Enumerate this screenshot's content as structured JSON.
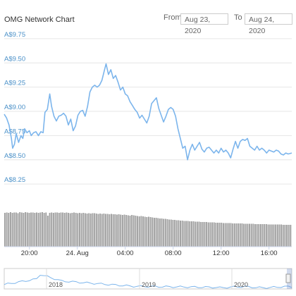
{
  "header": {
    "title": "OMG Network Chart",
    "from_label": "From",
    "from_value": "Aug 23, 2020",
    "to_label": "To",
    "to_value": "Aug 24, 2020"
  },
  "navigator": {
    "labels": [
      "2018",
      "2019",
      "2020"
    ]
  },
  "colors": {
    "line": "#7cb5ec",
    "volume": "#a0a0a0",
    "grid": "#e6e6e6",
    "axis_label": "#4a90c8"
  },
  "chart_data": {
    "type": "line",
    "title": "OMG Network Chart",
    "xlabel": "",
    "ylabel": "",
    "y_ticks": [
      "A$8.25",
      "A$8.50",
      "A$8.75",
      "A$9.00",
      "A$9.25",
      "A$9.50",
      "A$9.75"
    ],
    "y_tick_values": [
      8.25,
      8.5,
      8.75,
      9.0,
      9.25,
      9.5,
      9.75
    ],
    "ylim": [
      8.2,
      9.8
    ],
    "x_ticks": [
      "20:00",
      "24. Aug",
      "04:00",
      "08:00",
      "12:00",
      "16:00"
    ],
    "x_tick_hours": [
      20,
      24,
      28,
      32,
      36,
      40
    ],
    "xlim_hours": [
      17.9,
      41.9
    ],
    "grid": true,
    "legend": "none",
    "series": [
      {
        "values_by_hour": [
          [
            17.9,
            8.97
          ],
          [
            18.1,
            8.93
          ],
          [
            18.3,
            8.86
          ],
          [
            18.5,
            8.72
          ],
          [
            18.6,
            8.62
          ],
          [
            18.75,
            8.66
          ],
          [
            18.9,
            8.77
          ],
          [
            19.1,
            8.68
          ],
          [
            19.3,
            8.75
          ],
          [
            19.45,
            8.72
          ],
          [
            19.6,
            8.82
          ],
          [
            19.8,
            8.78
          ],
          [
            20.0,
            8.8
          ],
          [
            20.15,
            8.75
          ],
          [
            20.35,
            8.78
          ],
          [
            20.55,
            8.79
          ],
          [
            20.75,
            8.75
          ],
          [
            20.95,
            8.79
          ],
          [
            21.15,
            8.78
          ],
          [
            21.3,
            8.99
          ],
          [
            21.5,
            9.02
          ],
          [
            21.7,
            9.18
          ],
          [
            21.85,
            9.05
          ],
          [
            22.05,
            8.95
          ],
          [
            22.25,
            8.9
          ],
          [
            22.45,
            8.95
          ],
          [
            22.65,
            8.96
          ],
          [
            22.85,
            8.98
          ],
          [
            23.05,
            8.95
          ],
          [
            23.25,
            8.86
          ],
          [
            23.45,
            8.92
          ],
          [
            23.65,
            8.8
          ],
          [
            23.85,
            8.85
          ],
          [
            24.05,
            8.96
          ],
          [
            24.25,
            9.0
          ],
          [
            24.45,
            9.01
          ],
          [
            24.65,
            8.95
          ],
          [
            24.85,
            9.05
          ],
          [
            25.05,
            9.2
          ],
          [
            25.25,
            9.25
          ],
          [
            25.45,
            9.27
          ],
          [
            25.65,
            9.25
          ],
          [
            25.85,
            9.27
          ],
          [
            26.05,
            9.32
          ],
          [
            26.25,
            9.42
          ],
          [
            26.4,
            9.49
          ],
          [
            26.6,
            9.38
          ],
          [
            26.8,
            9.43
          ],
          [
            27.0,
            9.34
          ],
          [
            27.2,
            9.37
          ],
          [
            27.4,
            9.3
          ],
          [
            27.6,
            9.22
          ],
          [
            27.8,
            9.25
          ],
          [
            28.0,
            9.18
          ],
          [
            28.2,
            9.16
          ],
          [
            28.4,
            9.1
          ],
          [
            28.6,
            9.06
          ],
          [
            28.8,
            9.02
          ],
          [
            29.0,
            8.99
          ],
          [
            29.2,
            8.93
          ],
          [
            29.4,
            8.96
          ],
          [
            29.6,
            8.92
          ],
          [
            29.8,
            8.88
          ],
          [
            30.0,
            8.95
          ],
          [
            30.2,
            9.08
          ],
          [
            30.4,
            9.11
          ],
          [
            30.6,
            9.14
          ],
          [
            30.8,
            9.03
          ],
          [
            31.0,
            8.96
          ],
          [
            31.2,
            8.89
          ],
          [
            31.4,
            8.95
          ],
          [
            31.6,
            9.02
          ],
          [
            31.8,
            9.04
          ],
          [
            32.0,
            9.02
          ],
          [
            32.2,
            8.95
          ],
          [
            32.4,
            8.82
          ],
          [
            32.6,
            8.72
          ],
          [
            32.8,
            8.62
          ],
          [
            33.0,
            8.64
          ],
          [
            33.2,
            8.5
          ],
          [
            33.4,
            8.6
          ],
          [
            33.6,
            8.66
          ],
          [
            33.8,
            8.6
          ],
          [
            34.0,
            8.64
          ],
          [
            34.2,
            8.68
          ],
          [
            34.4,
            8.61
          ],
          [
            34.6,
            8.58
          ],
          [
            34.8,
            8.62
          ],
          [
            35.0,
            8.63
          ],
          [
            35.2,
            8.6
          ],
          [
            35.4,
            8.57
          ],
          [
            35.6,
            8.6
          ],
          [
            35.8,
            8.57
          ],
          [
            36.0,
            8.62
          ],
          [
            36.2,
            8.58
          ],
          [
            36.4,
            8.6
          ],
          [
            36.6,
            8.57
          ],
          [
            36.8,
            8.52
          ],
          [
            37.0,
            8.61
          ],
          [
            37.2,
            8.69
          ],
          [
            37.4,
            8.62
          ],
          [
            37.6,
            8.69
          ],
          [
            37.8,
            8.71
          ],
          [
            38.0,
            8.7
          ],
          [
            38.2,
            8.72
          ],
          [
            38.4,
            8.64
          ],
          [
            38.6,
            8.62
          ],
          [
            38.8,
            8.6
          ],
          [
            39.0,
            8.64
          ],
          [
            39.2,
            8.6
          ],
          [
            39.4,
            8.62
          ],
          [
            39.6,
            8.6
          ],
          [
            39.8,
            8.57
          ],
          [
            40.0,
            8.6
          ],
          [
            40.2,
            8.59
          ],
          [
            40.4,
            8.58
          ],
          [
            40.6,
            8.6
          ],
          [
            40.8,
            8.59
          ],
          [
            41.0,
            8.56
          ],
          [
            41.2,
            8.55
          ],
          [
            41.4,
            8.57
          ],
          [
            41.6,
            8.56
          ],
          [
            41.9,
            8.57
          ]
        ]
      }
    ],
    "volume_levels": [
      0.96,
      0.97,
      0.96,
      0.98,
      0.96,
      0.97,
      0.97,
      0.95,
      0.98,
      0.97,
      0.96,
      0.98,
      0.97,
      0.96,
      0.97,
      0.97,
      0.96,
      0.97,
      0.96,
      0.97,
      0.98,
      0.96,
      0.97,
      0.88,
      0.96,
      0.97,
      0.96,
      0.97,
      0.97,
      0.96,
      0.97,
      0.97,
      0.96,
      0.97,
      0.96,
      0.95,
      0.96,
      0.97,
      0.96,
      0.95,
      0.96,
      0.95,
      0.96,
      0.95,
      0.94,
      0.95,
      0.94,
      0.95,
      0.95,
      0.94,
      0.93,
      0.94,
      0.93,
      0.94,
      0.93,
      0.93,
      0.92,
      0.93,
      0.92,
      0.92,
      0.91,
      0.92,
      0.91,
      0.9,
      0.91,
      0.9,
      0.89,
      0.88,
      0.9,
      0.89,
      0.88,
      0.87,
      0.86,
      0.87,
      0.86,
      0.85,
      0.84,
      0.85,
      0.84,
      0.83,
      0.82,
      0.82,
      0.81,
      0.8,
      0.8,
      0.79,
      0.79,
      0.78,
      0.77,
      0.77,
      0.76,
      0.76,
      0.75,
      0.75,
      0.74,
      0.74,
      0.73,
      0.73,
      0.73,
      0.72,
      0.72,
      0.72,
      0.71,
      0.71,
      0.71,
      0.7,
      0.7,
      0.7,
      0.7,
      0.69,
      0.69,
      0.69,
      0.69,
      0.68,
      0.68,
      0.68,
      0.68,
      0.67,
      0.67,
      0.67,
      0.67,
      0.67,
      0.66,
      0.66,
      0.66,
      0.66,
      0.66,
      0.66,
      0.65,
      0.65,
      0.65,
      0.65,
      0.65,
      0.65,
      0.64,
      0.64,
      0.64,
      0.64,
      0.64,
      0.64,
      0.64,
      0.63,
      0.63,
      0.63,
      0.63,
      0.63,
      0.63,
      0.63,
      0.63,
      0.62,
      0.62,
      0.62,
      0.62,
      0.62
    ]
  }
}
